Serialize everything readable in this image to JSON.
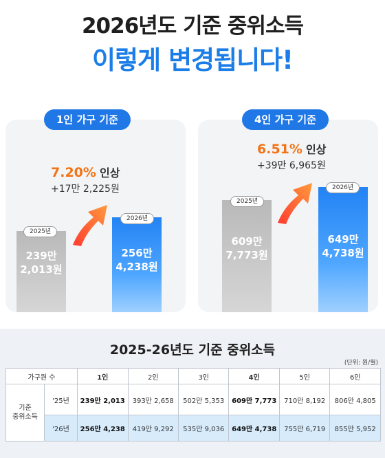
{
  "headline": {
    "line1": "2026년도 기준 중위소득",
    "line2": "이렇게 변경됩니다!"
  },
  "one_person": {
    "pill": "1인 가구 기준",
    "increase_pct": "7.20%",
    "increase_word": "인상",
    "increase_amount": "+17만 2,225원",
    "bar_2025": {
      "year": "2025년",
      "line1": "239만",
      "line2": "2,013원"
    },
    "bar_2026": {
      "year": "2026년",
      "line1": "256만",
      "line2": "4,238원"
    }
  },
  "four_person": {
    "pill": "4인 가구 기준",
    "increase_pct": "6.51%",
    "increase_word": "인상",
    "increase_amount": "+39만 6,965원",
    "bar_2025": {
      "year": "2025년",
      "line1": "609만",
      "line2": "7,773원"
    },
    "bar_2026": {
      "year": "2026년",
      "line1": "649만",
      "line2": "4,738원"
    }
  },
  "table": {
    "title": "2025-26년도 기준 중위소득",
    "unit": "(단위: 원/월)",
    "header": [
      "가구원 수",
      "1인",
      "2인",
      "3인",
      "4인",
      "5인",
      "6인"
    ],
    "row_group": "기준\n중위소득",
    "row_group_line1": "기준",
    "row_group_line2": "중위소득",
    "rows": [
      {
        "year": "'25년",
        "values": [
          "239만 2,013",
          "393만 2,658",
          "502만 5,353",
          "609만 7,773",
          "710만 8,192",
          "806만 4,805"
        ]
      },
      {
        "year": "'26년",
        "values": [
          "256만 4,238",
          "419만 9,292",
          "535만 9,036",
          "649만 4,738",
          "755만 6,719",
          "855만 5,952"
        ]
      }
    ]
  },
  "colors": {
    "accent_blue": "#1f78e6",
    "increase_orange": "#f27418",
    "row_highlight": "#d7ebfb"
  }
}
